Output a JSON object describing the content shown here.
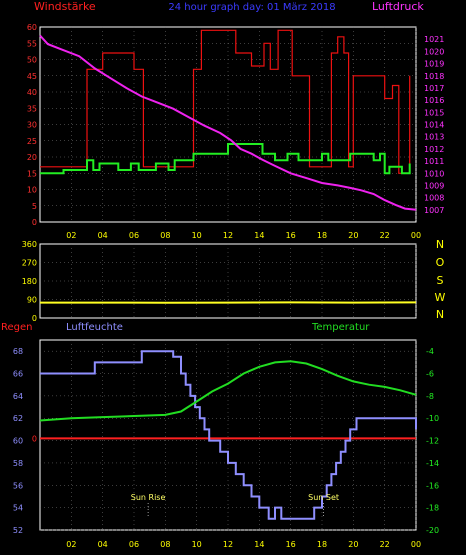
{
  "header": {
    "left_label": "Windstärke",
    "center_title": "24 hour graph day: 01 März 2018",
    "right_label": "Luftdruck"
  },
  "colors": {
    "bg": "#000000",
    "frame": "#ffffff",
    "grid": "#7a7a7a",
    "wind_label": "#ff2020",
    "pressure_label": "#ff33ff",
    "title": "#3b3bff",
    "direction_label": "#ffff00",
    "humidity": "#8f8fff",
    "temperature": "#22dd22",
    "rain": "#ff2020",
    "gust": "#ee1111",
    "wind": "#22ee22",
    "pressure": "#ee22ee",
    "direction": "#ffff22",
    "axis_left_top": "#ff3030",
    "axis_right_top": "#ff33ff",
    "axis_dir": "#ffff00",
    "axis_hum": "#8f8fff",
    "axis_temp": "#22ee22",
    "x_ticks": "#ffff00"
  },
  "x_ticks": [
    "02",
    "04",
    "06",
    "08",
    "10",
    "12",
    "14",
    "16",
    "18",
    "20",
    "22",
    "00"
  ],
  "chart_data": [
    {
      "type": "line",
      "title": "24 hour graph day: 01 März 2018",
      "x_range": [
        0,
        24
      ],
      "y_left": {
        "name": "Windstärke",
        "ylim": [
          0,
          60
        ],
        "ticks": [
          "0",
          "5",
          "10",
          "15",
          "20",
          "25",
          "30",
          "35",
          "40",
          "45",
          "50",
          "55",
          "60"
        ]
      },
      "y_right": {
        "name": "Luftdruck",
        "ylim": [
          1006,
          1022
        ],
        "ticks": [
          "1007",
          "1008",
          "1009",
          "1010",
          "1011",
          "1012",
          "1013",
          "1014",
          "1015",
          "1016",
          "1017",
          "1018",
          "1019",
          "1020",
          "1021"
        ]
      },
      "series": [
        {
          "axis": "left",
          "points": [
            [
              0,
              17
            ],
            [
              3,
              17
            ],
            [
              3,
              47
            ],
            [
              4,
              47
            ],
            [
              4,
              52
            ],
            [
              6,
              52
            ],
            [
              6,
              47
            ],
            [
              6.6,
              47
            ],
            [
              6.6,
              17
            ],
            [
              9.8,
              17
            ],
            [
              9.8,
              47
            ],
            [
              10.3,
              47
            ],
            [
              10.3,
              59
            ],
            [
              12.5,
              59
            ],
            [
              12.5,
              52
            ],
            [
              13.5,
              52
            ],
            [
              13.5,
              48
            ],
            [
              14.3,
              48
            ],
            [
              14.3,
              55
            ],
            [
              14.7,
              55
            ],
            [
              14.7,
              47
            ],
            [
              15.2,
              47
            ],
            [
              15.2,
              59
            ],
            [
              16.1,
              59
            ],
            [
              16.1,
              45
            ],
            [
              17.2,
              45
            ],
            [
              17.2,
              17
            ],
            [
              18.6,
              17
            ],
            [
              18.6,
              52
            ],
            [
              19,
              52
            ],
            [
              19,
              57
            ],
            [
              19.4,
              57
            ],
            [
              19.4,
              52
            ],
            [
              19.7,
              52
            ],
            [
              19.7,
              17
            ],
            [
              20,
              17
            ],
            [
              20,
              45
            ],
            [
              22,
              45
            ],
            [
              22,
              38
            ],
            [
              22.5,
              38
            ],
            [
              22.5,
              42
            ],
            [
              22.9,
              42
            ],
            [
              22.9,
              15
            ],
            [
              23.6,
              15
            ],
            [
              23.6,
              45
            ]
          ]
        },
        {
          "axis": "left",
          "points": [
            [
              0,
              15
            ],
            [
              1.5,
              15
            ],
            [
              1.5,
              16
            ],
            [
              3,
              16
            ],
            [
              3,
              19
            ],
            [
              3.4,
              19
            ],
            [
              3.4,
              16
            ],
            [
              3.8,
              16
            ],
            [
              3.8,
              18
            ],
            [
              5,
              18
            ],
            [
              5,
              16
            ],
            [
              5.8,
              16
            ],
            [
              5.8,
              18
            ],
            [
              6.3,
              18
            ],
            [
              6.3,
              16
            ],
            [
              7.4,
              16
            ],
            [
              7.4,
              18
            ],
            [
              8.2,
              18
            ],
            [
              8.2,
              16
            ],
            [
              8.6,
              16
            ],
            [
              8.6,
              19
            ],
            [
              9.8,
              19
            ],
            [
              9.8,
              21
            ],
            [
              12,
              21
            ],
            [
              12,
              24
            ],
            [
              14.2,
              24
            ],
            [
              14.2,
              21
            ],
            [
              15,
              21
            ],
            [
              15,
              19
            ],
            [
              15.8,
              19
            ],
            [
              15.8,
              21
            ],
            [
              16.5,
              21
            ],
            [
              16.5,
              19
            ],
            [
              18,
              19
            ],
            [
              18,
              21
            ],
            [
              18.4,
              21
            ],
            [
              18.4,
              19
            ],
            [
              19.8,
              19
            ],
            [
              19.8,
              21
            ],
            [
              21.3,
              21
            ],
            [
              21.3,
              19
            ],
            [
              21.7,
              19
            ],
            [
              21.7,
              21
            ],
            [
              22,
              21
            ],
            [
              22,
              15
            ],
            [
              22.3,
              15
            ],
            [
              22.3,
              17
            ],
            [
              23.1,
              17
            ],
            [
              23.1,
              15
            ],
            [
              23.6,
              15
            ],
            [
              23.6,
              18
            ]
          ]
        },
        {
          "axis": "right",
          "points": [
            [
              0,
              1021.3
            ],
            [
              0.5,
              1020.6
            ],
            [
              1.5,
              1020.1
            ],
            [
              2.5,
              1019.6
            ],
            [
              3.5,
              1018.6
            ],
            [
              4.5,
              1017.8
            ],
            [
              5.5,
              1017.0
            ],
            [
              6.5,
              1016.3
            ],
            [
              7.5,
              1015.8
            ],
            [
              8.5,
              1015.3
            ],
            [
              9.5,
              1014.6
            ],
            [
              10.5,
              1013.9
            ],
            [
              11.5,
              1013.3
            ],
            [
              12.2,
              1012.7
            ],
            [
              12.8,
              1012.0
            ],
            [
              13.5,
              1011.6
            ],
            [
              14.2,
              1011.1
            ],
            [
              15,
              1010.6
            ],
            [
              16,
              1010.0
            ],
            [
              17,
              1009.6
            ],
            [
              18,
              1009.2
            ],
            [
              19,
              1009.0
            ],
            [
              19.8,
              1008.8
            ],
            [
              20.5,
              1008.6
            ],
            [
              21.3,
              1008.3
            ],
            [
              22,
              1007.8
            ],
            [
              22.7,
              1007.4
            ],
            [
              23.3,
              1007.1
            ],
            [
              24,
              1007.0
            ]
          ]
        }
      ]
    },
    {
      "type": "line",
      "x_range": [
        0,
        24
      ],
      "y_left": {
        "ylim": [
          0,
          360
        ],
        "ticks": [
          "0",
          "90",
          "180",
          "270",
          "360"
        ]
      },
      "y_right": {
        "ticks": [
          "N",
          "W",
          "S",
          "O",
          "N"
        ]
      },
      "series": [
        {
          "points": [
            [
              0,
              75
            ],
            [
              4,
              75
            ],
            [
              8,
              74
            ],
            [
              12,
              75
            ],
            [
              16,
              76
            ],
            [
              20,
              75
            ],
            [
              24,
              76
            ]
          ]
        }
      ]
    },
    {
      "type": "line",
      "x_range": [
        0,
        24
      ],
      "y_left": {
        "name": "Luftfeuchte",
        "ylim": [
          52,
          69
        ],
        "ticks": [
          "52",
          "54",
          "56",
          "58",
          "60",
          "62",
          "64",
          "66",
          "68"
        ]
      },
      "y_right": {
        "name": "Temperatur",
        "ylim": [
          -20,
          -3
        ],
        "ticks": [
          "-4",
          "-6",
          "-8",
          "-10",
          "-12",
          "-14",
          "-16",
          "-18",
          "-20"
        ]
      },
      "rain_axis": {
        "name": "Regen",
        "tick": "0"
      },
      "annotations": [
        {
          "label": "Sun Rise",
          "x": 6.9
        },
        {
          "label": "Sun Set",
          "x": 18.1
        }
      ],
      "series": [
        {
          "axis": "left",
          "points": [
            [
              0,
              66
            ],
            [
              3.5,
              66
            ],
            [
              3.5,
              67
            ],
            [
              6.5,
              67
            ],
            [
              6.5,
              68
            ],
            [
              8.5,
              68
            ],
            [
              8.5,
              67.5
            ],
            [
              9,
              67.5
            ],
            [
              9,
              66
            ],
            [
              9.3,
              66
            ],
            [
              9.3,
              65
            ],
            [
              9.6,
              65
            ],
            [
              9.6,
              64
            ],
            [
              9.9,
              64
            ],
            [
              9.9,
              63
            ],
            [
              10.2,
              63
            ],
            [
              10.2,
              62
            ],
            [
              10.5,
              62
            ],
            [
              10.5,
              61
            ],
            [
              10.8,
              61
            ],
            [
              10.8,
              60
            ],
            [
              11.5,
              60
            ],
            [
              11.5,
              59
            ],
            [
              12,
              59
            ],
            [
              12,
              58
            ],
            [
              12.5,
              58
            ],
            [
              12.5,
              57
            ],
            [
              13,
              57
            ],
            [
              13,
              56
            ],
            [
              13.5,
              56
            ],
            [
              13.5,
              55
            ],
            [
              14,
              55
            ],
            [
              14,
              54
            ],
            [
              14.6,
              54
            ],
            [
              14.6,
              53
            ],
            [
              15,
              53
            ],
            [
              15,
              54
            ],
            [
              15.4,
              54
            ],
            [
              15.4,
              53
            ],
            [
              17.5,
              53
            ],
            [
              17.5,
              54
            ],
            [
              18,
              54
            ],
            [
              18,
              55
            ],
            [
              18.3,
              55
            ],
            [
              18.3,
              56
            ],
            [
              18.6,
              56
            ],
            [
              18.6,
              57
            ],
            [
              18.9,
              57
            ],
            [
              18.9,
              58
            ],
            [
              19.2,
              58
            ],
            [
              19.2,
              59
            ],
            [
              19.5,
              59
            ],
            [
              19.5,
              60
            ],
            [
              19.8,
              60
            ],
            [
              19.8,
              61
            ],
            [
              20.2,
              61
            ],
            [
              20.2,
              62
            ],
            [
              24,
              62
            ],
            [
              24,
              61
            ]
          ]
        },
        {
          "axis": "right",
          "points": [
            [
              0,
              -10.2
            ],
            [
              2,
              -10.0
            ],
            [
              4,
              -9.9
            ],
            [
              6,
              -9.8
            ],
            [
              8,
              -9.7
            ],
            [
              9,
              -9.4
            ],
            [
              10,
              -8.5
            ],
            [
              11,
              -7.6
            ],
            [
              12,
              -6.9
            ],
            [
              13,
              -6.0
            ],
            [
              14,
              -5.4
            ],
            [
              15,
              -5.0
            ],
            [
              16,
              -4.9
            ],
            [
              17,
              -5.1
            ],
            [
              18,
              -5.6
            ],
            [
              19,
              -6.2
            ],
            [
              20,
              -6.7
            ],
            [
              21,
              -7.0
            ],
            [
              22,
              -7.2
            ],
            [
              23,
              -7.5
            ],
            [
              24,
              -7.9
            ]
          ]
        },
        {
          "axis": "rain",
          "points": [
            [
              0,
              0
            ],
            [
              24,
              0
            ]
          ]
        }
      ]
    }
  ]
}
